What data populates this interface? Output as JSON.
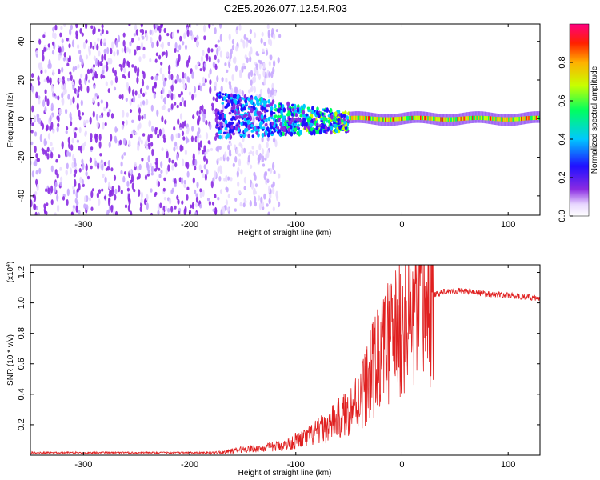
{
  "figure_title": "C2E5.2026.077.12.54.R03",
  "chart_data": [
    {
      "type": "heatmap",
      "xlabel": "Height of straight line (km)",
      "ylabel": "Frequency (Hz)",
      "xlim": [
        -350,
        130
      ],
      "ylim": [
        -50,
        49
      ],
      "x_ticks": [
        -300,
        -200,
        -100,
        0,
        100
      ],
      "x_tick_labels": [
        "-300",
        "-200",
        "-100",
        "0",
        "100"
      ],
      "y_ticks": [
        -40,
        -20,
        0,
        20,
        40
      ],
      "y_tick_labels": [
        "-40",
        "-20",
        "0",
        "20",
        "40"
      ],
      "colorbar": {
        "label": "Normalized spectral amplitude",
        "range": [
          0,
          1
        ],
        "ticks": [
          0.0,
          0.2,
          0.4,
          0.6,
          0.8
        ],
        "tick_labels": [
          "0.0",
          "0.2",
          "0.4",
          "0.6",
          "0.8"
        ],
        "colors": [
          "#ffffff",
          "#e8d8ff",
          "#8a2be2",
          "#2010ff",
          "#00c8ff",
          "#00ff60",
          "#c8ff00",
          "#ffb000",
          "#ff2000",
          "#ff0080"
        ]
      },
      "regions": [
        {
          "x_range": [
            -350,
            -175
          ],
          "description": "broadband noise",
          "amplitude": 0.2
        },
        {
          "x_range": [
            -175,
            -50
          ],
          "center_freq": 2,
          "bandwidth": 12,
          "amplitude": 0.45
        },
        {
          "x_range": [
            -50,
            130
          ],
          "center_freq": 0,
          "bandwidth": 3,
          "amplitude": 0.9
        }
      ]
    },
    {
      "type": "line",
      "xlabel": "Height of straight line (km)",
      "ylabel": "SNR (10 * v/v)",
      "y_scale_note": "(x10",
      "y_scale_exp": "4",
      "xlim": [
        -350,
        130
      ],
      "ylim": [
        0,
        1.25
      ],
      "x_ticks": [
        -300,
        -200,
        -100,
        0,
        100
      ],
      "x_tick_labels": [
        "-300",
        "-200",
        "-100",
        "0",
        "100"
      ],
      "y_ticks": [
        0.2,
        0.4,
        0.6,
        0.8,
        1.0,
        1.2
      ],
      "y_tick_labels": [
        "0.2",
        "0.4",
        "0.6",
        "0.8",
        "1.0",
        "1.2"
      ],
      "series": [
        {
          "name": "SNR",
          "color": "#e02020",
          "x": [
            -350,
            -300,
            -250,
            -200,
            -170,
            -150,
            -130,
            -110,
            -100,
            -90,
            -80,
            -70,
            -60,
            -50,
            -40,
            -30,
            -20,
            -10,
            0,
            10,
            20,
            30,
            40,
            60,
            80,
            100,
            120,
            130
          ],
          "y": [
            0.01,
            0.01,
            0.01,
            0.01,
            0.02,
            0.04,
            0.05,
            0.07,
            0.1,
            0.12,
            0.16,
            0.2,
            0.25,
            0.3,
            0.4,
            0.55,
            0.7,
            0.8,
            0.9,
            0.95,
            1.0,
            1.05,
            1.08,
            1.08,
            1.06,
            1.05,
            1.04,
            1.03
          ]
        }
      ]
    }
  ]
}
